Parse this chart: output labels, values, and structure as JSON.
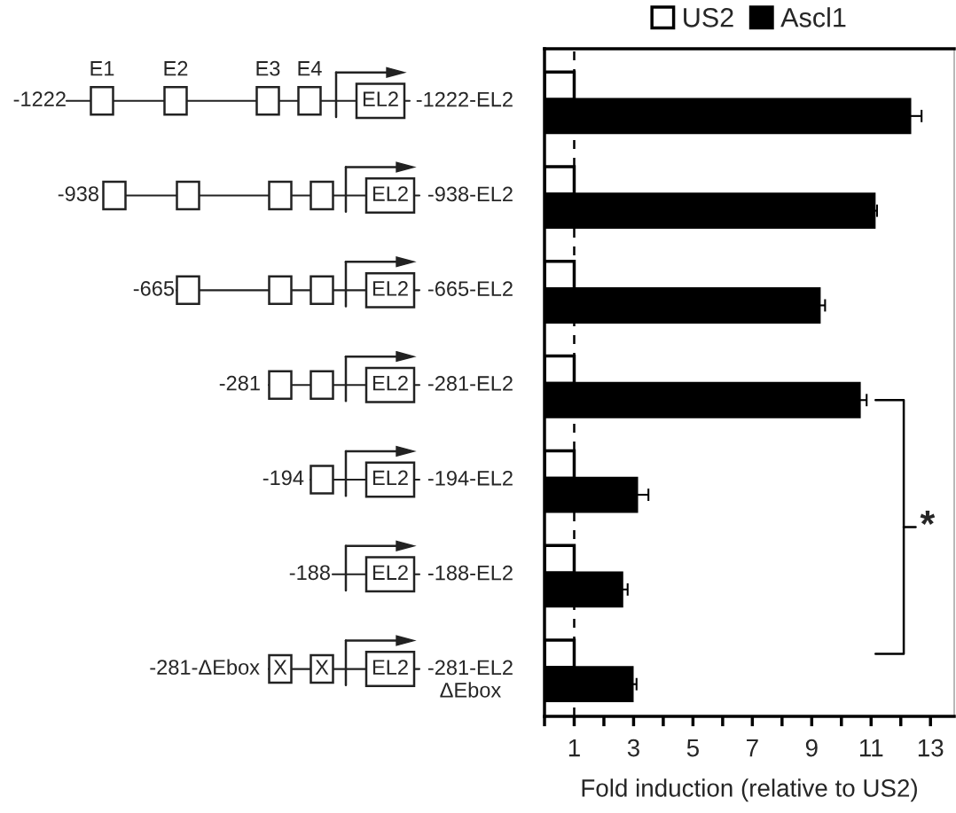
{
  "chart_data": {
    "type": "bar",
    "orientation": "horizontal",
    "categories": [
      "-1222-EL2",
      "-938-EL2",
      "-665-EL2",
      "-281-EL2",
      "-194-EL2",
      "-188-EL2",
      "-281-EL2\nΔEbox"
    ],
    "series": [
      {
        "name": "US2",
        "color": "#ffffff",
        "values": [
          1,
          1,
          1,
          1,
          1,
          1,
          1
        ]
      },
      {
        "name": "Ascl1",
        "color": "#000000",
        "values": [
          12.3,
          11.1,
          9.25,
          10.6,
          3.1,
          2.6,
          2.95
        ],
        "errors": [
          0.4,
          0.1,
          0.2,
          0.25,
          0.4,
          0.2,
          0.15
        ]
      }
    ],
    "xlabel": "Fold induction (relative to US2)",
    "xlim": [
      0,
      13.8
    ],
    "xticks": [
      {
        "value": 0,
        "label": null
      },
      1,
      {
        "value": 2,
        "label": null
      },
      3,
      {
        "value": 4,
        "label": null
      },
      5,
      {
        "value": 6,
        "label": null
      },
      7,
      {
        "value": 8,
        "label": null
      },
      9,
      {
        "value": 10,
        "label": null
      },
      11,
      {
        "value": 12,
        "label": null
      },
      13
    ],
    "ref_lines": [
      {
        "axis": "x",
        "value": 1,
        "color": "#000000",
        "line_style": "dashed"
      }
    ],
    "annotations": [
      "E1",
      "E2",
      "E3",
      "E4",
      "-1222",
      "-938",
      "-665",
      "-281",
      "-194",
      "-188",
      "-281-ΔEbox",
      "EL2",
      "EL2",
      "EL2",
      "EL2",
      "EL2",
      "EL2",
      "EL2",
      "X",
      "X",
      "*"
    ],
    "legend": "top",
    "grid": false
  }
}
